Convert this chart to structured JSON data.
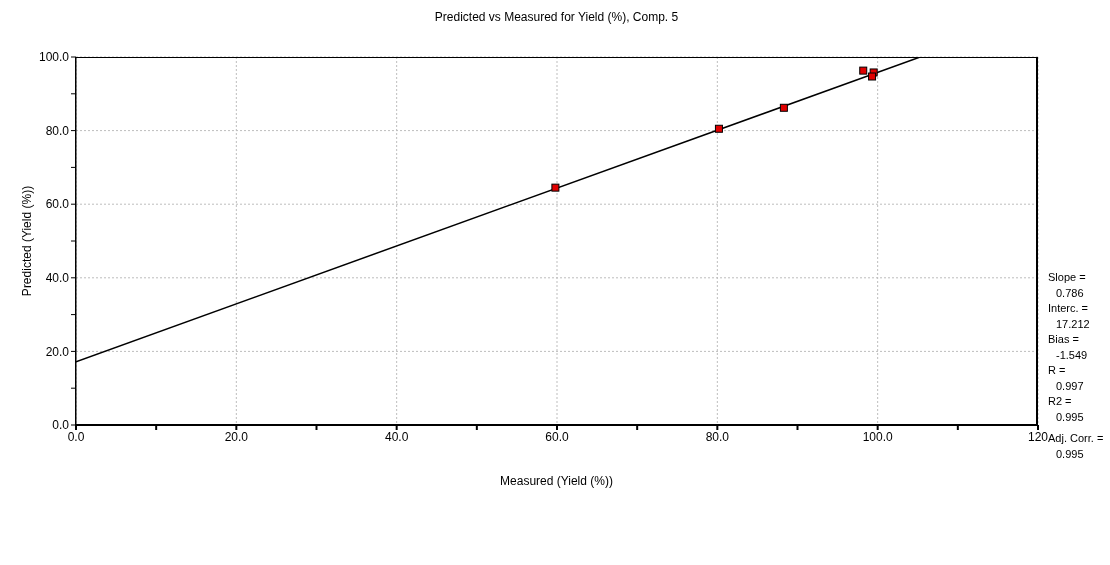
{
  "chart_data": {
    "type": "scatter",
    "title": "Predicted vs Measured for Yield (%), Comp. 5",
    "xlabel": "Measured (Yield (%))",
    "ylabel": "Predicted (Yield (%))",
    "xlim": [
      0,
      120
    ],
    "ylim": [
      0,
      100
    ],
    "xticks": [
      {
        "value": 0,
        "label": "0.0"
      },
      {
        "value": 10,
        "label": null
      },
      {
        "value": 20,
        "label": "20.0"
      },
      {
        "value": 30,
        "label": null
      },
      {
        "value": 40,
        "label": "40.0"
      },
      {
        "value": 50,
        "label": null
      },
      {
        "value": 60,
        "label": "60.0"
      },
      {
        "value": 70,
        "label": null
      },
      {
        "value": 80,
        "label": "80.0"
      },
      {
        "value": 90,
        "label": null
      },
      {
        "value": 100,
        "label": "100.0"
      },
      {
        "value": 110,
        "label": null
      },
      {
        "value": 120,
        "label": "120"
      }
    ],
    "yticks": [
      {
        "value": 0,
        "label": "0.0"
      },
      {
        "value": 10,
        "label": null
      },
      {
        "value": 20,
        "label": "20.0"
      },
      {
        "value": 30,
        "label": null
      },
      {
        "value": 40,
        "label": "40.0"
      },
      {
        "value": 50,
        "label": null
      },
      {
        "value": 60,
        "label": "60.0"
      },
      {
        "value": 70,
        "label": null
      },
      {
        "value": 80,
        "label": "80.0"
      },
      {
        "value": 90,
        "label": null
      },
      {
        "value": 100,
        "label": "100.0"
      }
    ],
    "grid": true,
    "series": [
      {
        "color": "#e00000",
        "marker": "square",
        "x": [
          59.8,
          80.2,
          88.3,
          98.2,
          99.5,
          99.3
        ],
        "values": [
          64.5,
          80.5,
          86.2,
          96.3,
          95.8,
          94.7
        ]
      },
      {
        "type": "line",
        "color": "#000000",
        "marker": "none",
        "x": [
          0,
          105.3
        ],
        "values": [
          17.2,
          100
        ]
      }
    ],
    "annotations": [
      "Slope =",
      "0.786",
      "Interc. =",
      "17.212",
      "Bias =",
      "-1.549",
      "R =",
      "0.997",
      "R2 =",
      "0.995",
      "Adj. Corr. =",
      "0.995"
    ]
  }
}
